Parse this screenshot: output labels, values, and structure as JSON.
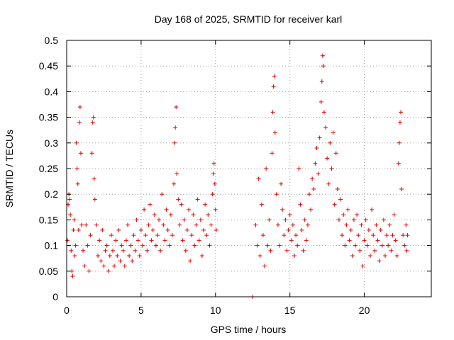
{
  "chart_data": {
    "type": "scatter",
    "title": "Day 168 of 2025, SRMTID for receiver karl",
    "xlabel": "GPS time / hours",
    "ylabel": "SRMTID / TECUs",
    "xlim": [
      0,
      24.5
    ],
    "ylim": [
      0,
      0.5
    ],
    "x_ticks": [
      0,
      5,
      10,
      15,
      20
    ],
    "y_ticks": [
      0,
      0.05,
      0.1,
      0.15,
      0.2,
      0.25,
      0.3,
      0.35,
      0.4,
      0.45,
      0.5
    ],
    "x_tick_labels": [
      "0",
      "5",
      "10",
      "15",
      "20"
    ],
    "y_tick_labels": [
      "0",
      "0.05",
      "0.1",
      "0.15",
      "0.2",
      "0.25",
      "0.3",
      "0.35",
      "0.4",
      "0.45",
      "0.5"
    ],
    "grid": true,
    "marker": "+",
    "color": "#e00000",
    "series": [
      {
        "name": "SRMTID",
        "points": [
          [
            0.05,
            0.11
          ],
          [
            0.1,
            0.18
          ],
          [
            0.15,
            0.2
          ],
          [
            0.2,
            0.19
          ],
          [
            0.25,
            0.16
          ],
          [
            0.3,
            0.09
          ],
          [
            0.35,
            0.05
          ],
          [
            0.4,
            0.04
          ],
          [
            0.45,
            0.13
          ],
          [
            0.5,
            0.15
          ],
          [
            0.55,
            0.08
          ],
          [
            0.6,
            0.1
          ],
          [
            0.65,
            0.3
          ],
          [
            0.7,
            0.25
          ],
          [
            0.75,
            0.22
          ],
          [
            0.8,
            0.13
          ],
          [
            0.85,
            0.34
          ],
          [
            0.9,
            0.37
          ],
          [
            0.95,
            0.28
          ],
          [
            1.0,
            0.14
          ],
          [
            1.1,
            0.09
          ],
          [
            1.2,
            0.06
          ],
          [
            1.3,
            0.14
          ],
          [
            1.4,
            0.1
          ],
          [
            1.5,
            0.05
          ],
          [
            1.6,
            0.12
          ],
          [
            1.7,
            0.28
          ],
          [
            1.75,
            0.34
          ],
          [
            1.8,
            0.35
          ],
          [
            1.85,
            0.23
          ],
          [
            1.9,
            0.19
          ],
          [
            2.0,
            0.14
          ],
          [
            2.1,
            0.08
          ],
          [
            2.2,
            0.11
          ],
          [
            2.3,
            0.07
          ],
          [
            2.4,
            0.13
          ],
          [
            2.5,
            0.06
          ],
          [
            2.6,
            0.09
          ],
          [
            2.7,
            0.1
          ],
          [
            2.8,
            0.05
          ],
          [
            2.9,
            0.08
          ],
          [
            3.0,
            0.12
          ],
          [
            3.1,
            0.09
          ],
          [
            3.2,
            0.06
          ],
          [
            3.3,
            0.11
          ],
          [
            3.4,
            0.08
          ],
          [
            3.5,
            0.13
          ],
          [
            3.6,
            0.07
          ],
          [
            3.7,
            0.1
          ],
          [
            3.8,
            0.09
          ],
          [
            3.9,
            0.06
          ],
          [
            4.0,
            0.11
          ],
          [
            4.1,
            0.14
          ],
          [
            4.2,
            0.08
          ],
          [
            4.3,
            0.1
          ],
          [
            4.4,
            0.07
          ],
          [
            4.5,
            0.12
          ],
          [
            4.6,
            0.09
          ],
          [
            4.7,
            0.15
          ],
          [
            4.8,
            0.11
          ],
          [
            4.9,
            0.08
          ],
          [
            5.0,
            0.13
          ],
          [
            5.1,
            0.1
          ],
          [
            5.2,
            0.17
          ],
          [
            5.3,
            0.12
          ],
          [
            5.4,
            0.09
          ],
          [
            5.5,
            0.14
          ],
          [
            5.6,
            0.18
          ],
          [
            5.7,
            0.11
          ],
          [
            5.8,
            0.13
          ],
          [
            5.9,
            0.16
          ],
          [
            6.0,
            0.1
          ],
          [
            6.1,
            0.12
          ],
          [
            6.2,
            0.15
          ],
          [
            6.3,
            0.09
          ],
          [
            6.4,
            0.2
          ],
          [
            6.5,
            0.14
          ],
          [
            6.6,
            0.11
          ],
          [
            6.7,
            0.17
          ],
          [
            6.8,
            0.13
          ],
          [
            6.9,
            0.1
          ],
          [
            7.0,
            0.16
          ],
          [
            7.1,
            0.12
          ],
          [
            7.2,
            0.22
          ],
          [
            7.25,
            0.3
          ],
          [
            7.3,
            0.33
          ],
          [
            7.35,
            0.37
          ],
          [
            7.4,
            0.24
          ],
          [
            7.5,
            0.19
          ],
          [
            7.6,
            0.14
          ],
          [
            7.7,
            0.18
          ],
          [
            7.8,
            0.11
          ],
          [
            7.9,
            0.15
          ],
          [
            8.0,
            0.09
          ],
          [
            8.1,
            0.13
          ],
          [
            8.2,
            0.17
          ],
          [
            8.3,
            0.07
          ],
          [
            8.4,
            0.12
          ],
          [
            8.5,
            0.16
          ],
          [
            8.6,
            0.1
          ],
          [
            8.7,
            0.14
          ],
          [
            8.8,
            0.19
          ],
          [
            8.9,
            0.11
          ],
          [
            9.0,
            0.15
          ],
          [
            9.1,
            0.08
          ],
          [
            9.2,
            0.13
          ],
          [
            9.3,
            0.18
          ],
          [
            9.4,
            0.12
          ],
          [
            9.5,
            0.16
          ],
          [
            9.6,
            0.1
          ],
          [
            9.7,
            0.14
          ],
          [
            9.8,
            0.2
          ],
          [
            9.85,
            0.24
          ],
          [
            9.9,
            0.26
          ],
          [
            9.95,
            0.22
          ],
          [
            10.0,
            0.17
          ],
          [
            10.05,
            0.13
          ],
          [
            12.5,
            0.0
          ],
          [
            12.7,
            0.14
          ],
          [
            12.8,
            0.1
          ],
          [
            12.9,
            0.23
          ],
          [
            13.0,
            0.08
          ],
          [
            13.1,
            0.18
          ],
          [
            13.2,
            0.12
          ],
          [
            13.3,
            0.06
          ],
          [
            13.4,
            0.25
          ],
          [
            13.5,
            0.1
          ],
          [
            13.6,
            0.15
          ],
          [
            13.7,
            0.09
          ],
          [
            13.8,
            0.28
          ],
          [
            13.85,
            0.36
          ],
          [
            13.9,
            0.41
          ],
          [
            13.95,
            0.43
          ],
          [
            14.0,
            0.32
          ],
          [
            14.1,
            0.2
          ],
          [
            14.2,
            0.14
          ],
          [
            14.3,
            0.1
          ],
          [
            14.4,
            0.22
          ],
          [
            14.5,
            0.17
          ],
          [
            14.6,
            0.12
          ],
          [
            14.7,
            0.15
          ],
          [
            14.8,
            0.09
          ],
          [
            14.9,
            0.13
          ],
          [
            15.0,
            0.16
          ],
          [
            15.1,
            0.11
          ],
          [
            15.2,
            0.14
          ],
          [
            15.3,
            0.08
          ],
          [
            15.4,
            0.12
          ],
          [
            15.5,
            0.1
          ],
          [
            15.6,
            0.25
          ],
          [
            15.7,
            0.18
          ],
          [
            15.8,
            0.13
          ],
          [
            15.9,
            0.09
          ],
          [
            16.0,
            0.15
          ],
          [
            16.1,
            0.11
          ],
          [
            16.2,
            0.14
          ],
          [
            16.3,
            0.2
          ],
          [
            16.4,
            0.17
          ],
          [
            16.5,
            0.23
          ],
          [
            16.6,
            0.21
          ],
          [
            16.7,
            0.26
          ],
          [
            16.8,
            0.29
          ],
          [
            16.9,
            0.24
          ],
          [
            17.0,
            0.31
          ],
          [
            17.1,
            0.38
          ],
          [
            17.15,
            0.42
          ],
          [
            17.2,
            0.47
          ],
          [
            17.25,
            0.45
          ],
          [
            17.3,
            0.36
          ],
          [
            17.4,
            0.33
          ],
          [
            17.5,
            0.27
          ],
          [
            17.6,
            0.22
          ],
          [
            17.7,
            0.3
          ],
          [
            17.8,
            0.25
          ],
          [
            17.9,
            0.32
          ],
          [
            18.0,
            0.18
          ],
          [
            18.1,
            0.28
          ],
          [
            18.2,
            0.21
          ],
          [
            18.3,
            0.15
          ],
          [
            18.4,
            0.19
          ],
          [
            18.5,
            0.12
          ],
          [
            18.6,
            0.16
          ],
          [
            18.7,
            0.1
          ],
          [
            18.8,
            0.14
          ],
          [
            18.9,
            0.17
          ],
          [
            19.0,
            0.11
          ],
          [
            19.1,
            0.13
          ],
          [
            19.2,
            0.08
          ],
          [
            19.3,
            0.15
          ],
          [
            19.4,
            0.1
          ],
          [
            19.5,
            0.16
          ],
          [
            19.6,
            0.12
          ],
          [
            19.7,
            0.09
          ],
          [
            19.8,
            0.14
          ],
          [
            19.9,
            0.06
          ],
          [
            20.0,
            0.11
          ],
          [
            20.1,
            0.15
          ],
          [
            20.2,
            0.1
          ],
          [
            20.3,
            0.13
          ],
          [
            20.4,
            0.08
          ],
          [
            20.5,
            0.17
          ],
          [
            20.6,
            0.12
          ],
          [
            20.7,
            0.09
          ],
          [
            20.8,
            0.14
          ],
          [
            20.9,
            0.11
          ],
          [
            21.0,
            0.07
          ],
          [
            21.1,
            0.13
          ],
          [
            21.2,
            0.1
          ],
          [
            21.3,
            0.15
          ],
          [
            21.4,
            0.08
          ],
          [
            21.5,
            0.12
          ],
          [
            21.6,
            0.1
          ],
          [
            21.7,
            0.14
          ],
          [
            21.8,
            0.09
          ],
          [
            21.9,
            0.12
          ],
          [
            22.0,
            0.16
          ],
          [
            22.1,
            0.11
          ],
          [
            22.2,
            0.08
          ],
          [
            22.3,
            0.26
          ],
          [
            22.35,
            0.3
          ],
          [
            22.4,
            0.34
          ],
          [
            22.45,
            0.36
          ],
          [
            22.5,
            0.21
          ],
          [
            22.6,
            0.12
          ],
          [
            22.7,
            0.1
          ],
          [
            22.8,
            0.14
          ],
          [
            22.85,
            0.09
          ],
          [
            22.9,
            0.12
          ]
        ]
      }
    ]
  }
}
